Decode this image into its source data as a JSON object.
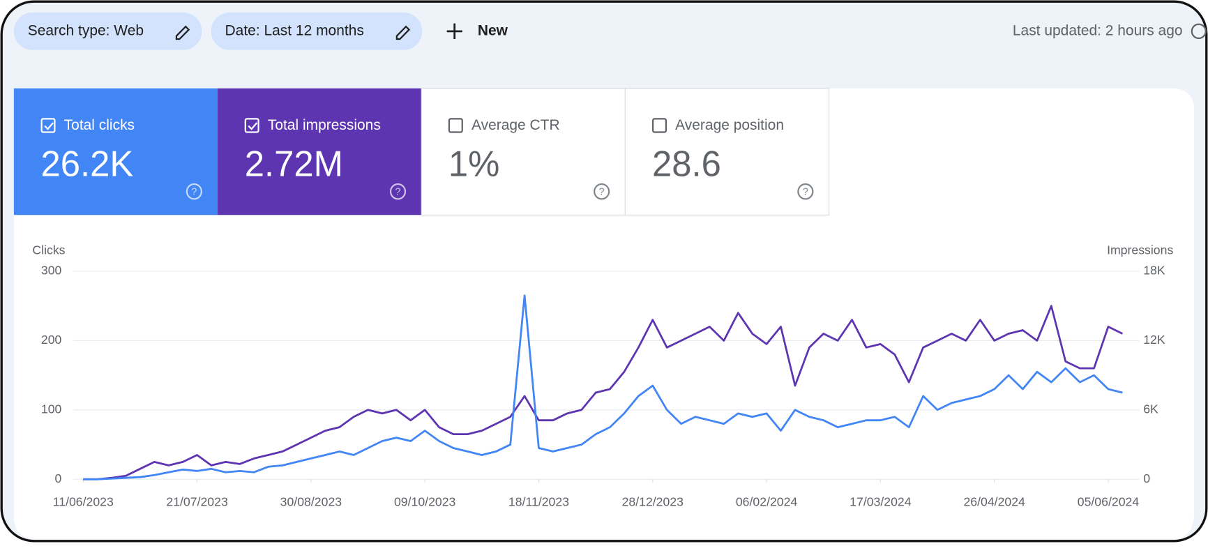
{
  "header": {
    "chips": [
      "Search type: Web",
      "Date: Last 12 months"
    ],
    "new_button": "New",
    "last_updated": "Last updated: 2 hours ago"
  },
  "metrics": [
    {
      "label": "Total clicks",
      "value": "26.2K",
      "checked": true,
      "color": "#4285f4"
    },
    {
      "label": "Total impressions",
      "value": "2.72M",
      "checked": true,
      "color": "#5e35b1"
    },
    {
      "label": "Average CTR",
      "value": "1%",
      "checked": false,
      "color": "#ffffff"
    },
    {
      "label": "Average position",
      "value": "28.6",
      "checked": false,
      "color": "#ffffff"
    }
  ],
  "chart_data": {
    "type": "line",
    "ylabel": "Clicks",
    "y2label": "Impressions",
    "grid": true,
    "x": [
      "11/06/2023",
      "16/06/2023",
      "21/06/2023",
      "26/06/2023",
      "01/07/2023",
      "06/07/2023",
      "11/07/2023",
      "16/07/2023",
      "21/07/2023",
      "26/07/2023",
      "31/07/2023",
      "05/08/2023",
      "10/08/2023",
      "15/08/2023",
      "20/08/2023",
      "25/08/2023",
      "30/08/2023",
      "04/09/2023",
      "09/09/2023",
      "14/09/2023",
      "19/09/2023",
      "24/09/2023",
      "29/09/2023",
      "04/10/2023",
      "09/10/2023",
      "14/10/2023",
      "19/10/2023",
      "24/10/2023",
      "29/10/2023",
      "03/11/2023",
      "08/11/2023",
      "13/11/2023",
      "18/11/2023",
      "23/11/2023",
      "28/11/2023",
      "03/12/2023",
      "08/12/2023",
      "13/12/2023",
      "18/12/2023",
      "23/12/2023",
      "28/12/2023",
      "02/01/2024",
      "07/01/2024",
      "12/01/2024",
      "17/01/2024",
      "22/01/2024",
      "27/01/2024",
      "01/02/2024",
      "06/02/2024",
      "11/02/2024",
      "16/02/2024",
      "21/02/2024",
      "26/02/2024",
      "02/03/2024",
      "07/03/2024",
      "12/03/2024",
      "17/03/2024",
      "22/03/2024",
      "27/03/2024",
      "01/04/2024",
      "06/04/2024",
      "11/04/2024",
      "16/04/2024",
      "21/04/2024",
      "26/04/2024",
      "01/05/2024",
      "06/05/2024",
      "11/05/2024",
      "16/05/2024",
      "21/05/2024",
      "26/05/2024",
      "31/05/2024",
      "05/06/2024",
      "10/06/2024"
    ],
    "xticks": [
      "11/06/2023",
      "21/07/2023",
      "30/08/2023",
      "09/10/2023",
      "18/11/2023",
      "28/12/2023",
      "06/02/2024",
      "17/03/2024",
      "26/04/2024",
      "05/06/2024"
    ],
    "ylim": [
      0,
      300
    ],
    "yticks": [
      0,
      100,
      200,
      300
    ],
    "y2lim": [
      0,
      18000
    ],
    "y2ticks": [
      0,
      {
        "value": 6000,
        "label": "6K"
      },
      {
        "value": 12000,
        "label": "12K"
      },
      {
        "value": 18000,
        "label": "18K"
      }
    ],
    "series": [
      {
        "name": "Impressions",
        "color": "#5e35b1",
        "axis": "y2",
        "values": [
          0,
          0,
          120,
          300,
          900,
          1500,
          1200,
          1500,
          2100,
          1200,
          1500,
          1320,
          1800,
          2100,
          2400,
          3000,
          3600,
          4200,
          4500,
          5400,
          6000,
          5700,
          6000,
          5100,
          6000,
          4500,
          3900,
          3900,
          4200,
          4800,
          5400,
          7200,
          5100,
          5100,
          5700,
          6000,
          7500,
          7800,
          9300,
          11400,
          13800,
          11400,
          12000,
          12600,
          13200,
          12000,
          14400,
          12600,
          11700,
          13200,
          8100,
          11400,
          12600,
          12000,
          13800,
          11400,
          11700,
          10800,
          8400,
          11400,
          12000,
          12600,
          12000,
          13800,
          12000,
          12600,
          12900,
          12000,
          15000,
          10200,
          9600,
          9600,
          13200,
          12600
        ]
      },
      {
        "name": "Clicks",
        "color": "#4285f4",
        "values": [
          0,
          0,
          1,
          2,
          3,
          6,
          10,
          14,
          12,
          15,
          10,
          12,
          10,
          18,
          20,
          25,
          30,
          35,
          40,
          35,
          45,
          55,
          60,
          55,
          70,
          55,
          45,
          40,
          35,
          40,
          50,
          265,
          45,
          40,
          45,
          50,
          65,
          75,
          95,
          120,
          135,
          100,
          80,
          90,
          85,
          80,
          95,
          90,
          95,
          70,
          100,
          90,
          85,
          75,
          80,
          85,
          85,
          90,
          75,
          120,
          100,
          110,
          115,
          120,
          130,
          150,
          130,
          155,
          140,
          160,
          140,
          150,
          130,
          125
        ]
      }
    ]
  }
}
